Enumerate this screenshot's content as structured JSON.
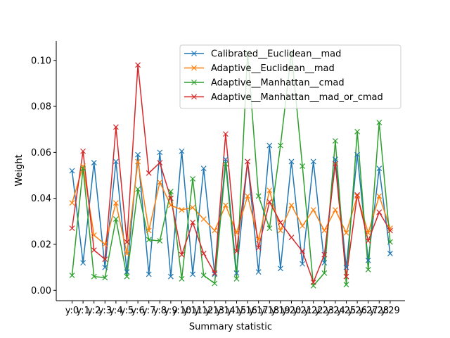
{
  "chart_data": {
    "type": "line",
    "title": "",
    "xlabel": "Summary statistic",
    "ylabel": "Weight",
    "categories": [
      "y:0",
      "y:1",
      "y:2",
      "y:3",
      "y:4",
      "y:5",
      "y:6",
      "y:7",
      "y:8",
      "y:9",
      "y:10",
      "y:11",
      "y:12",
      "y:13",
      "y:14",
      "y:15",
      "y:16",
      "y:17",
      "y:18",
      "y:19",
      "y:20",
      "y:21",
      "y:22",
      "y:23",
      "y:24",
      "y:25",
      "y:26",
      "y:27",
      "y:28",
      "y:29"
    ],
    "ylim": [
      -0.0045,
      0.1085
    ],
    "yticks": [
      "0.00",
      "0.02",
      "0.04",
      "0.06",
      "0.08",
      "0.10"
    ],
    "ytick_values": [
      0,
      0.02,
      0.04,
      0.06,
      0.08,
      0.1
    ],
    "grid": false,
    "legend_position": "top-right",
    "marker": "x",
    "series": [
      {
        "name": "Calibrated__Euclidean__mad",
        "color": "#1f77b4",
        "values": [
          0.052,
          0.012,
          0.0555,
          0.01,
          0.056,
          0.008,
          0.059,
          0.007,
          0.06,
          0.006,
          0.0605,
          0.007,
          0.053,
          0.007,
          0.057,
          0.0075,
          0.056,
          0.008,
          0.063,
          0.0095,
          0.056,
          0.0115,
          0.056,
          0.012,
          0.057,
          0.01,
          0.059,
          0.013,
          0.053,
          0.016
        ]
      },
      {
        "name": "Adaptive__Euclidean__mad",
        "color": "#ff7f0e",
        "values": [
          0.038,
          0.054,
          0.024,
          0.02,
          0.038,
          0.016,
          0.056,
          0.026,
          0.047,
          0.037,
          0.035,
          0.036,
          0.031,
          0.026,
          0.037,
          0.025,
          0.041,
          0.022,
          0.0435,
          0.026,
          0.037,
          0.028,
          0.035,
          0.026,
          0.035,
          0.025,
          0.041,
          0.025,
          0.041,
          0.027
        ]
      },
      {
        "name": "Adaptive__Manhattan__cmad",
        "color": "#2ca02c",
        "values": [
          0.0065,
          0.053,
          0.006,
          0.0055,
          0.031,
          0.006,
          0.044,
          0.022,
          0.0215,
          0.043,
          0.005,
          0.0485,
          0.0065,
          0.003,
          0.055,
          0.005,
          0.1035,
          0.041,
          0.027,
          0.063,
          0.1035,
          0.054,
          0.002,
          0.0075,
          0.065,
          0.0025,
          0.069,
          0.009,
          0.073,
          0.021
        ]
      },
      {
        "name": "Adaptive__Manhattan__mad_or_cmad",
        "color": "#d62728",
        "values": [
          0.027,
          0.0605,
          0.0175,
          0.0135,
          0.071,
          0.021,
          0.098,
          0.051,
          0.0555,
          0.04,
          0.0155,
          0.0295,
          0.016,
          0.0075,
          0.068,
          0.017,
          0.056,
          0.0185,
          0.0385,
          0.0295,
          0.023,
          0.017,
          0.0035,
          0.0155,
          0.055,
          0.006,
          0.0415,
          0.0215,
          0.034,
          0.026
        ]
      }
    ]
  }
}
